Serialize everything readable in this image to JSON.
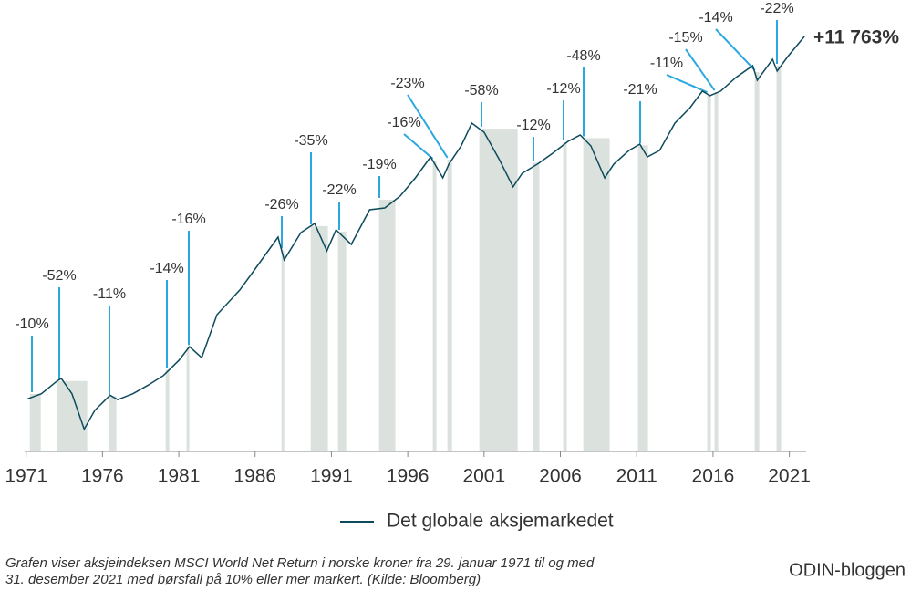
{
  "chart_data": {
    "type": "line",
    "log_y": true,
    "xlim": [
      1970.9,
      2022.1
    ],
    "ylim": [
      50,
      17000
    ],
    "xticks": [
      1971,
      1976,
      1981,
      1986,
      1991,
      1996,
      2001,
      2006,
      2011,
      2016,
      2021
    ],
    "x": [
      1971.1,
      1972.0,
      1973.0,
      1973.3,
      1974.0,
      1974.8,
      1975.5,
      1976.5,
      1977.0,
      1978.0,
      1979.0,
      1980.0,
      1981.0,
      1981.7,
      1982.5,
      1983.5,
      1985.0,
      1986.0,
      1987.5,
      1987.9,
      1989.0,
      1989.9,
      1990.7,
      1991.3,
      1992.3,
      1993.5,
      1994.5,
      1995.5,
      1996.5,
      1997.5,
      1998.3,
      1998.7,
      1999.5,
      2000.2,
      2001.0,
      2002.0,
      2002.9,
      2003.5,
      2004.5,
      2005.5,
      2006.5,
      2007.3,
      2008.0,
      2008.9,
      2009.5,
      2010.5,
      2011.2,
      2011.7,
      2012.5,
      2013.5,
      2014.5,
      2015.3,
      2015.8,
      2016.5,
      2017.5,
      2018.6,
      2018.9,
      2019.9,
      2020.2,
      2020.9,
      2021.99
    ],
    "series": [
      {
        "name": "Det globale aksjemarkedet",
        "color": "#0d4a5c",
        "values": [
          100,
          107,
          126,
          131,
          107,
          67,
          86,
          105,
          99,
          107,
          120,
          136,
          166,
          199,
          172,
          303,
          420,
          553,
          842,
          624,
          895,
          1009,
          703,
          928,
          765,
          1208,
          1238,
          1447,
          1841,
          2426,
          1841,
          2205,
          2802,
          3786,
          3358,
          2340,
          1633,
          1953,
          2205,
          2546,
          2977,
          3238,
          2802,
          1841,
          2205,
          2640,
          2870,
          2426,
          2640,
          3786,
          4643,
          5768,
          5431,
          5768,
          6904,
          8074,
          6654,
          8780,
          7512,
          9100,
          11863
        ]
      }
    ],
    "end_label": "+11 763%",
    "drawdowns": {
      "color": "#dbe2dd",
      "line_color": "#2aa8df",
      "starts": [
        1971.24,
        1973.03,
        1976.44,
        1980.14,
        1981.51,
        1987.73,
        1989.64,
        1991.43,
        1994.12,
        1997.64,
        1998.6,
        2000.69,
        2004.21,
        2006.18,
        2007.5,
        2011.08,
        2015.62,
        2016.1,
        2018.73,
        2020.16
      ],
      "ends": [
        1971.96,
        1975.0,
        1976.91,
        1980.38,
        1981.69,
        1987.91,
        1990.77,
        1991.97,
        1995.19,
        1997.88,
        1998.9,
        2003.2,
        2004.63,
        2006.42,
        2009.23,
        2011.74,
        2015.86,
        2016.34,
        2019.03,
        2020.46
      ],
      "values": [
        -10,
        -52,
        -11,
        -14,
        -16,
        -26,
        -35,
        -22,
        -19,
        -16,
        -23,
        -58,
        -12,
        -12,
        -48,
        -21,
        -11,
        -15,
        -14,
        -22
      ],
      "value_labels": [
        "-10%",
        "-52%",
        "-11%",
        "-14%",
        "-16%",
        "-26%",
        "-35%",
        "-22%",
        "-19%",
        "-16%",
        "-23%",
        "-58%",
        "-12%",
        "-12%",
        "-48%",
        "-21%",
        "-11%",
        "-15%",
        "-14%",
        "-22%"
      ]
    },
    "footnote": [
      "Grafen viser aksjeindeksen MSCI World Net Return i norske kroner fra 29. januar 1971 til og med",
      "31. desember 2021 med børsfall på 10% eller mer markert. (Kilde: Bloomberg)"
    ],
    "source": "ODIN-bloggen"
  }
}
